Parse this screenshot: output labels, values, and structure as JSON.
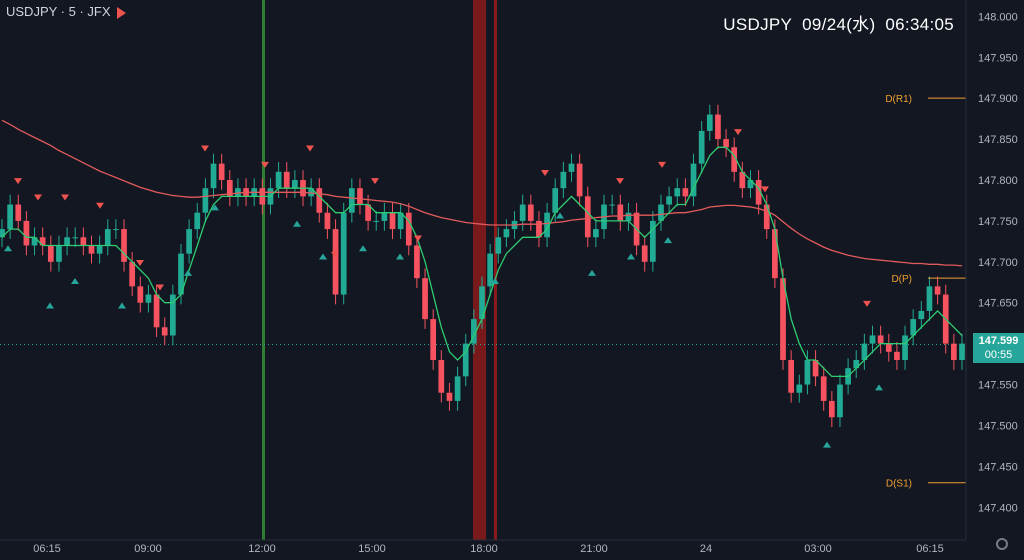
{
  "header": {
    "symbol_line": "USDJPY · 5 · JFX",
    "symbol": "USDJPY",
    "date": "09/24(水)",
    "time": "06:34:05"
  },
  "colors": {
    "background": "#131722",
    "up": "#26a69a",
    "down": "#ef5350",
    "candle_up": "#22ab94",
    "candle_down": "#f7525f",
    "sma_fast": "#2ecc71",
    "sma_slow": "#e25b5b",
    "pivot": "#f0a030",
    "session_green": "#2e7d32",
    "session_red": "#8b1a1a"
  },
  "current_price": {
    "value": "147.599",
    "countdown": "00:55"
  },
  "pivots": [
    {
      "label": "D(R1)",
      "value": 147.9
    },
    {
      "label": "D(P)",
      "value": 147.68
    },
    {
      "label": "D(S1)",
      "value": 147.43
    }
  ],
  "chart_data": {
    "type": "line",
    "title": "",
    "ylim": [
      147.36,
      148.02
    ],
    "y_ticks": [
      "148.000",
      "147.950",
      "147.900",
      "147.850",
      "147.800",
      "147.750",
      "147.700",
      "147.650",
      "147.600",
      "147.550",
      "147.500",
      "147.450",
      "147.400"
    ],
    "x_ticks": [
      "06:15",
      "09:00",
      "12:00",
      "15:00",
      "18:00",
      "21:00",
      "24",
      "03:00",
      "06:15"
    ],
    "series": [
      {
        "values": [
          147.74,
          147.77,
          147.75,
          147.72,
          147.73,
          147.72,
          147.7,
          147.72,
          147.73,
          147.73,
          147.72,
          147.71,
          147.72,
          147.74,
          147.74,
          147.7,
          147.67,
          147.65,
          147.66,
          147.62,
          147.61,
          147.66,
          147.71,
          147.74,
          147.76,
          147.79,
          147.82,
          147.8,
          147.78,
          147.79,
          147.78,
          147.79,
          147.77,
          147.79,
          147.81,
          147.79,
          147.8,
          147.78,
          147.79,
          147.76,
          147.74,
          147.66,
          147.76,
          147.79,
          147.77,
          147.75,
          147.75,
          147.76,
          147.74,
          147.76,
          147.72,
          147.68,
          147.63,
          147.58,
          147.54,
          147.53,
          147.56,
          147.6,
          147.63,
          147.67,
          147.71,
          147.73,
          147.74,
          147.75,
          147.77,
          147.75,
          147.73,
          147.76,
          147.79,
          147.81,
          147.82,
          147.78,
          147.73,
          147.74,
          147.77,
          147.77,
          147.75,
          147.76,
          147.72,
          147.7,
          147.75,
          147.77,
          147.78,
          147.79,
          147.78,
          147.82,
          147.86,
          147.88,
          147.85,
          147.84,
          147.81,
          147.79,
          147.8,
          147.77,
          147.74,
          147.68,
          147.58,
          147.54,
          147.55,
          147.58,
          147.56,
          147.53,
          147.51,
          147.55,
          147.57,
          147.58,
          147.6,
          147.61,
          147.6,
          147.59,
          147.58,
          147.61,
          147.63,
          147.64,
          147.67,
          147.66,
          147.6,
          147.58,
          147.6
        ]
      },
      {
        "values": [
          147.873,
          147.868,
          147.862,
          147.857,
          147.852,
          147.847,
          147.842,
          147.836,
          147.831,
          147.826,
          147.821,
          147.816,
          147.811,
          147.807,
          147.803,
          147.799,
          147.795,
          147.791,
          147.788,
          147.785,
          147.783,
          147.781,
          147.78,
          147.779,
          147.779,
          147.78,
          147.781,
          147.782,
          147.783,
          147.784,
          147.785,
          147.785,
          147.785,
          147.785,
          147.785,
          147.785,
          147.785,
          147.785,
          147.784,
          147.783,
          147.782,
          147.78,
          147.779,
          147.778,
          147.777,
          147.776,
          147.775,
          147.774,
          147.773,
          147.771,
          147.768,
          147.764,
          147.76,
          147.757,
          147.754,
          147.752,
          147.75,
          147.748,
          147.747,
          147.746,
          147.745,
          147.745,
          147.745,
          147.745,
          147.746,
          147.746,
          147.746,
          147.747,
          147.748,
          147.749,
          147.751,
          147.752,
          147.753,
          147.754,
          147.755,
          147.756,
          147.756,
          147.757,
          147.757,
          147.757,
          147.757,
          147.758,
          147.759,
          147.76,
          147.76,
          147.762,
          147.764,
          147.767,
          147.768,
          147.769,
          147.769,
          147.768,
          147.767,
          147.765,
          147.762,
          147.757,
          147.749,
          147.741,
          147.734,
          147.728,
          147.723,
          147.718,
          147.714,
          147.711,
          147.708,
          147.706,
          147.704,
          147.703,
          147.702,
          147.701,
          147.7,
          147.699,
          147.698,
          147.698,
          147.697,
          147.697,
          147.696,
          147.696,
          147.695
        ]
      },
      {
        "values": [
          147.73,
          147.74,
          147.74,
          147.73,
          147.73,
          147.72,
          147.72,
          147.72,
          147.72,
          147.72,
          147.72,
          147.72,
          147.72,
          147.72,
          147.72,
          147.71,
          147.7,
          147.69,
          147.68,
          147.66,
          147.65,
          147.65,
          147.66,
          147.69,
          147.72,
          147.75,
          147.77,
          147.78,
          147.78,
          147.78,
          147.78,
          147.78,
          147.78,
          147.78,
          147.79,
          147.79,
          147.79,
          147.79,
          147.79,
          147.78,
          147.77,
          147.76,
          147.76,
          147.77,
          147.77,
          147.77,
          147.76,
          147.76,
          147.76,
          147.76,
          147.75,
          147.73,
          147.7,
          147.66,
          147.62,
          147.59,
          147.58,
          147.59,
          147.61,
          147.63,
          147.66,
          147.69,
          147.71,
          147.72,
          147.73,
          147.73,
          147.73,
          147.74,
          147.76,
          147.77,
          147.78,
          147.77,
          147.76,
          147.75,
          147.75,
          147.75,
          147.75,
          147.75,
          147.74,
          147.73,
          147.74,
          147.75,
          147.76,
          147.77,
          147.77,
          147.79,
          147.81,
          147.83,
          147.84,
          147.84,
          147.83,
          147.81,
          147.8,
          147.79,
          147.77,
          147.74,
          147.68,
          147.63,
          147.6,
          147.58,
          147.58,
          147.57,
          147.56,
          147.56,
          147.56,
          147.57,
          147.58,
          147.59,
          147.6,
          147.6,
          147.6,
          147.6,
          147.61,
          147.62,
          147.63,
          147.64,
          147.63,
          147.62,
          147.61
        ]
      }
    ],
    "markers_down_x": [
      18,
      38,
      65,
      100,
      140,
      160,
      205,
      265,
      310,
      335,
      375,
      418,
      545,
      620,
      662,
      738,
      765,
      867
    ],
    "markers_up_x": [
      8,
      50,
      75,
      122,
      188,
      215,
      297,
      323,
      363,
      400,
      495,
      560,
      592,
      631,
      668,
      827,
      879
    ]
  }
}
